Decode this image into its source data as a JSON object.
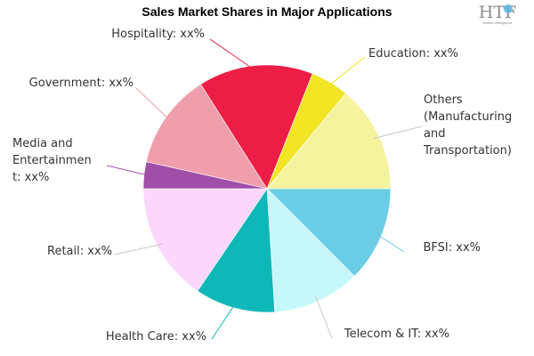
{
  "chart_data": {
    "type": "pie",
    "title": "Sales Market Shares in Major Applications",
    "slices": [
      {
        "label": "BFSI: xx%",
        "percent": 12.5,
        "color": "#6ccde6"
      },
      {
        "label": "Telecom & IT: xx%",
        "percent": 11.5,
        "color": "#c6f8fb"
      },
      {
        "label": "Health Care: xx%",
        "percent": 10.5,
        "color": "#0fb8b8"
      },
      {
        "label": "Retail: xx%",
        "percent": 15.5,
        "color": "#fcd7fb"
      },
      {
        "label": "Media and Entertainment: xx%",
        "percent": 3.5,
        "color": "#a14ea8"
      },
      {
        "label": "Government: xx%",
        "percent": 12.5,
        "color": "#ef9fac"
      },
      {
        "label": "Hospitality: xx%",
        "percent": 15.0,
        "color": "#ec1e46"
      },
      {
        "label": "Education: xx%",
        "percent": 5.0,
        "color": "#f1e524"
      },
      {
        "label": "Others (Manufacturing and Transportation)",
        "percent": 14.0,
        "color": "#f6f39f"
      }
    ]
  },
  "logo": {
    "text": "HTF",
    "subtext": "Market Intelligence"
  }
}
